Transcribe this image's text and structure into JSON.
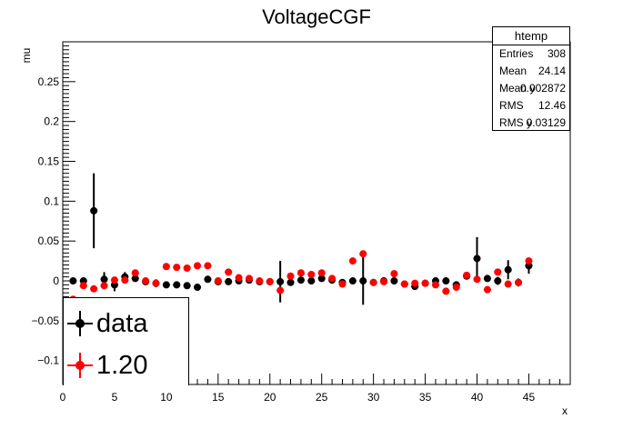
{
  "chart_data": {
    "type": "scatter",
    "title": "VoltageCGF",
    "xlabel": "x",
    "ylabel": "mu",
    "xlim": [
      0,
      49
    ],
    "ylim": [
      -0.13,
      0.3
    ],
    "xticks": [
      0,
      5,
      10,
      15,
      20,
      25,
      30,
      35,
      40,
      45
    ],
    "yticks": [
      -0.1,
      -0.05,
      0,
      0.05,
      0.1,
      0.15,
      0.2,
      0.25
    ],
    "ytick_labels": [
      "−0.1",
      "−0.05",
      "0",
      "0.05",
      "0.1",
      "0.15",
      "0.2",
      "0.25"
    ],
    "grid": false,
    "legend_position": "bottom-left",
    "series": [
      {
        "name": "data",
        "color": "#000000",
        "x": [
          1,
          2,
          3,
          4,
          5,
          6,
          7,
          8,
          9,
          10,
          11,
          12,
          13,
          14,
          15,
          16,
          17,
          18,
          19,
          20,
          21,
          22,
          23,
          24,
          25,
          26,
          27,
          28,
          29,
          30,
          31,
          32,
          33,
          34,
          35,
          36,
          37,
          38,
          39,
          40,
          41,
          42,
          43,
          44,
          45
        ],
        "y": [
          0.0,
          0.0,
          0.088,
          0.002,
          -0.005,
          0.005,
          0.003,
          -0.001,
          -0.003,
          -0.005,
          -0.005,
          -0.006,
          -0.008,
          0.002,
          -0.001,
          -0.001,
          0.0,
          0.001,
          -0.001,
          -0.001,
          -0.001,
          -0.002,
          0.001,
          0.0,
          0.003,
          0.001,
          -0.002,
          0.0,
          0.0,
          -0.002,
          0.0,
          0.0,
          -0.004,
          -0.007,
          -0.003,
          0.0,
          0.0,
          -0.005,
          0.006,
          0.028,
          0.003,
          0.0,
          0.014,
          -0.002,
          0.019
        ],
        "yerr": [
          0.0,
          0.0,
          0.047,
          0.009,
          0.008,
          0.006,
          0.003,
          0.003,
          0.005,
          0.002,
          0.002,
          0.002,
          0.002,
          0.002,
          0.002,
          0.002,
          0.003,
          0.002,
          0.002,
          0.003,
          0.026,
          0.003,
          0.002,
          0.003,
          0.002,
          0.002,
          0.003,
          0.004,
          0.03,
          0.002,
          0.004,
          0.003,
          0.003,
          0.004,
          0.004,
          0.002,
          0.004,
          0.004,
          0.004,
          0.027,
          0.004,
          0.005,
          0.012,
          0.005,
          0.01
        ]
      },
      {
        "name": "1.20",
        "color": "#ff0000",
        "x": [
          1,
          2,
          3,
          4,
          5,
          6,
          7,
          8,
          9,
          10,
          11,
          12,
          13,
          14,
          15,
          16,
          17,
          18,
          19,
          20,
          21,
          22,
          23,
          24,
          25,
          26,
          27,
          28,
          29,
          30,
          31,
          32,
          33,
          34,
          35,
          36,
          37,
          38,
          39,
          40,
          41,
          42,
          43,
          44,
          45
        ],
        "y": [
          -0.023,
          -0.006,
          -0.01,
          -0.006,
          0.001,
          0.001,
          0.01,
          0.0,
          -0.003,
          0.018,
          0.017,
          0.016,
          0.019,
          0.019,
          0.0,
          0.011,
          0.004,
          0.003,
          0.0,
          -0.001,
          -0.012,
          0.006,
          0.01,
          0.008,
          0.01,
          0.003,
          -0.004,
          0.025,
          0.034,
          -0.002,
          -0.001,
          0.009,
          -0.004,
          -0.003,
          -0.003,
          -0.005,
          -0.013,
          -0.008,
          0.007,
          0.002,
          -0.011,
          0.011,
          -0.004,
          -0.002,
          0.025
        ],
        "yerr": [
          0.003,
          0.003,
          0.003,
          0.003,
          0.003,
          0.003,
          0.003,
          0.003,
          0.003,
          0.002,
          0.002,
          0.002,
          0.002,
          0.002,
          0.002,
          0.002,
          0.002,
          0.002,
          0.002,
          0.002,
          0.002,
          0.002,
          0.002,
          0.002,
          0.002,
          0.002,
          0.002,
          0.002,
          0.002,
          0.002,
          0.002,
          0.002,
          0.002,
          0.002,
          0.002,
          0.002,
          0.002,
          0.002,
          0.002,
          0.002,
          0.002,
          0.002,
          0.002,
          0.002,
          0.004
        ]
      }
    ],
    "stats_box": {
      "title": "htemp",
      "rows": [
        {
          "key": "Entries",
          "value": "308"
        },
        {
          "key": "Mean",
          "value": "24.14"
        },
        {
          "key": "Mean y",
          "value": "0.002872"
        },
        {
          "key": "RMS",
          "value": "12.46"
        },
        {
          "key": "RMS y",
          "value": "0.03129"
        }
      ]
    }
  }
}
